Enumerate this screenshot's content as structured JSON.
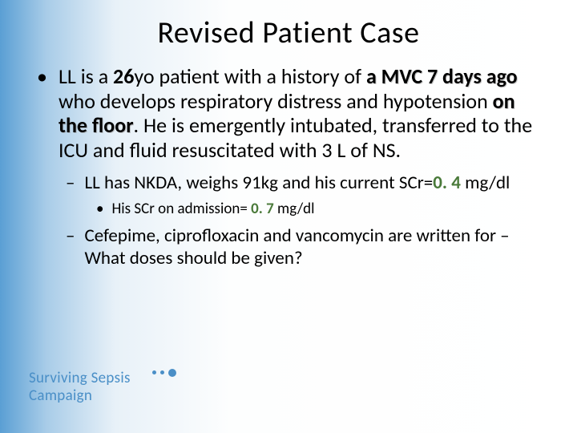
{
  "title": "Revised Patient Case",
  "bullets": {
    "l1": {
      "pre1": "LL is a ",
      "age": "26",
      "mid1": "yo patient with a history of ",
      "mvc": "a MVC 7 days ago",
      "mid2": " who develops respiratory distress and hypotension ",
      "floor": "on the floor",
      "post": ".  He is emergently intubated, transferred to the ICU and fluid resuscitated with 3 L of NS."
    },
    "l2a": {
      "pre": "LL has NKDA, weighs 91kg and his current SCr=",
      "val": "0. 4",
      "post": " mg/dl"
    },
    "l3a": {
      "pre": "His SCr on admission= ",
      "val": "0. 7",
      "post": " mg/dl"
    },
    "l2b": "Cefepime, ciprofloxacin and vancomycin are written for – What doses should be given?"
  },
  "bullet_marks": {
    "l1": "•",
    "l2": "–",
    "l3": "•"
  },
  "logo": {
    "line1": "Surviving Sepsis",
    "line2": "Campaign"
  },
  "colors": {
    "green": "#4a7a3a",
    "logo_blue": "#4a8fc7"
  }
}
